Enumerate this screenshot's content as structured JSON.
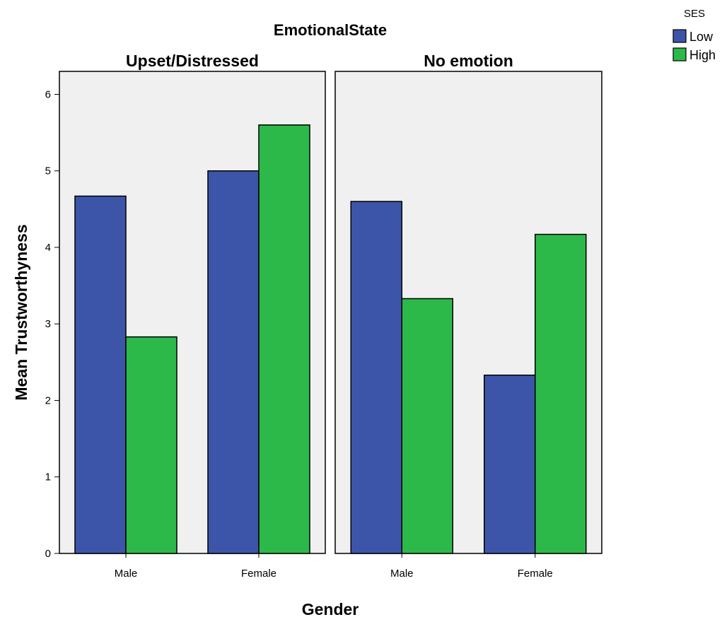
{
  "chart_data": {
    "type": "bar",
    "title": "EmotionalState",
    "xlabel": "Gender",
    "ylabel": "Mean Trustworthyness",
    "ylim": [
      0,
      6.3
    ],
    "yticks": [
      0,
      1,
      2,
      3,
      4,
      5,
      6
    ],
    "categories": [
      "Male",
      "Female"
    ],
    "legend": {
      "title": "SES",
      "placement": "top-right",
      "items": [
        {
          "name": "Low",
          "color": "#3d55a8"
        },
        {
          "name": "High",
          "color": "#2db84a"
        }
      ]
    },
    "panels": [
      {
        "title": "Upset/Distressed",
        "series": [
          {
            "name": "Low",
            "values": [
              4.67,
              5.0
            ]
          },
          {
            "name": "High",
            "values": [
              2.83,
              5.6
            ]
          }
        ]
      },
      {
        "title": "No emotion",
        "series": [
          {
            "name": "Low",
            "values": [
              4.6,
              2.33
            ]
          },
          {
            "name": "High",
            "values": [
              3.33,
              4.17
            ]
          }
        ]
      }
    ],
    "grid": false,
    "colors": {
      "panel_bg": "#f0f0f0",
      "frame": "#000000"
    }
  }
}
